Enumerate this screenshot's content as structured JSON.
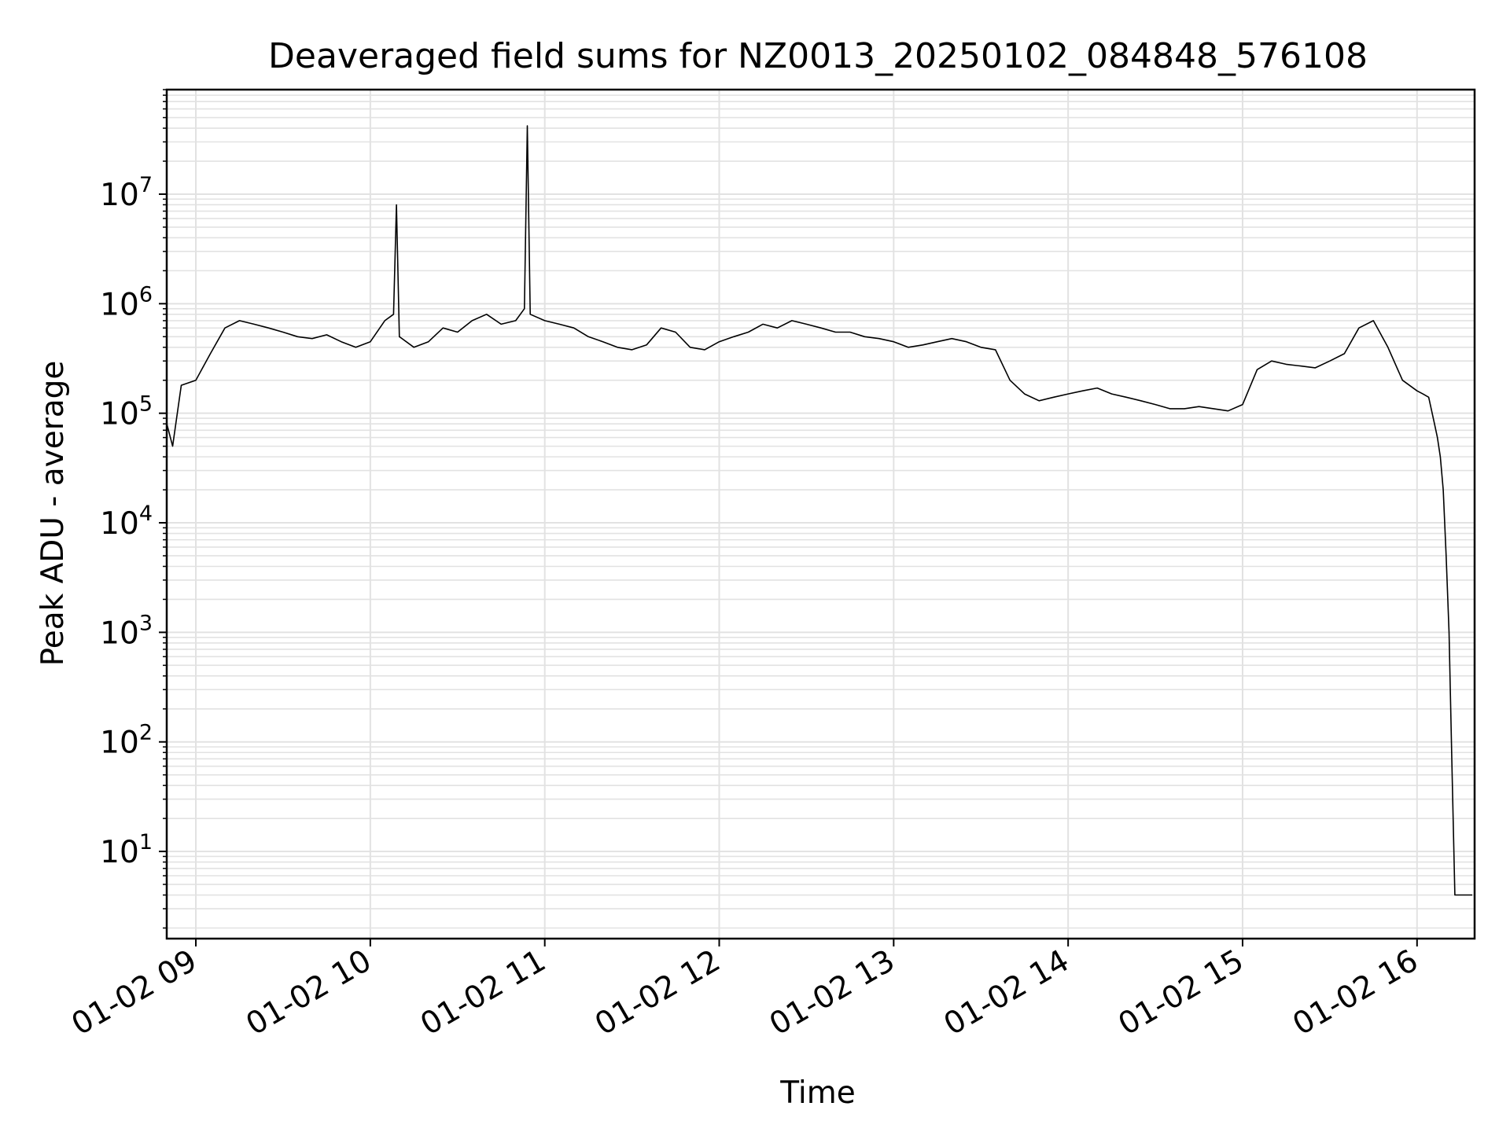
{
  "chart_data": {
    "type": "line",
    "title": "Deaveraged field sums for NZ0013_20250102_084848_576108",
    "xlabel": "Time",
    "ylabel": "Peak ADU - average",
    "yscale": "log",
    "ylim": [
      1.6,
      90000000
    ],
    "xlim": [
      "01-02 08:49:59",
      "01-02 16:19:48"
    ],
    "grid": true,
    "line_color": "#000000",
    "grid_color": "#e2e2e2",
    "x_ticks": [
      {
        "time": "01-02 09:00",
        "label": "01-02 09"
      },
      {
        "time": "01-02 10:00",
        "label": "01-02 10"
      },
      {
        "time": "01-02 11:00",
        "label": "01-02 11"
      },
      {
        "time": "01-02 12:00",
        "label": "01-02 12"
      },
      {
        "time": "01-02 13:00",
        "label": "01-02 13"
      },
      {
        "time": "01-02 14:00",
        "label": "01-02 14"
      },
      {
        "time": "01-02 15:00",
        "label": "01-02 15"
      },
      {
        "time": "01-02 16:00",
        "label": "01-02 16"
      }
    ],
    "y_ticks": [
      {
        "value": 10,
        "base": "10",
        "exp": "1"
      },
      {
        "value": 100,
        "base": "10",
        "exp": "2"
      },
      {
        "value": 1000,
        "base": "10",
        "exp": "3"
      },
      {
        "value": 10000,
        "base": "10",
        "exp": "4"
      },
      {
        "value": 100000,
        "base": "10",
        "exp": "5"
      },
      {
        "value": 1000000,
        "base": "10",
        "exp": "6"
      },
      {
        "value": 10000000,
        "base": "10",
        "exp": "7"
      }
    ],
    "series": [
      {
        "name": "",
        "x": [
          "08:50",
          "08:52",
          "08:55",
          "09:00",
          "09:05",
          "09:10",
          "09:15",
          "09:20",
          "09:25",
          "09:30",
          "09:35",
          "09:40",
          "09:45",
          "09:50",
          "09:55",
          "10:00",
          "10:05",
          "10:08",
          "10:09",
          "10:10",
          "10:15",
          "10:20",
          "10:25",
          "10:30",
          "10:35",
          "10:40",
          "10:45",
          "10:50",
          "10:53",
          "10:54",
          "10:55",
          "11:00",
          "11:05",
          "11:10",
          "11:15",
          "11:20",
          "11:25",
          "11:30",
          "11:35",
          "11:40",
          "11:45",
          "11:50",
          "11:55",
          "12:00",
          "12:05",
          "12:10",
          "12:15",
          "12:20",
          "12:25",
          "12:30",
          "12:35",
          "12:40",
          "12:45",
          "12:50",
          "12:55",
          "13:00",
          "13:05",
          "13:10",
          "13:15",
          "13:20",
          "13:25",
          "13:30",
          "13:35",
          "13:40",
          "13:45",
          "13:50",
          "13:55",
          "14:00",
          "14:05",
          "14:10",
          "14:15",
          "14:20",
          "14:25",
          "14:30",
          "14:35",
          "14:40",
          "14:45",
          "14:50",
          "14:55",
          "15:00",
          "15:05",
          "15:10",
          "15:15",
          "15:20",
          "15:25",
          "15:30",
          "15:35",
          "15:40",
          "15:45",
          "15:50",
          "15:55",
          "16:00",
          "16:02",
          "16:04",
          "16:06",
          "16:07",
          "16:08",
          "16:09",
          "16:10",
          "16:11",
          "16:12",
          "16:13",
          "16:15",
          "16:17",
          "16:19"
        ],
        "y": [
          80000,
          50000,
          180000,
          200000,
          350000,
          600000,
          700000,
          650000,
          600000,
          550000,
          500000,
          480000,
          520000,
          450000,
          400000,
          450000,
          700000,
          800000,
          8000000,
          500000,
          400000,
          450000,
          600000,
          550000,
          700000,
          800000,
          650000,
          700000,
          900000,
          42000000,
          800000,
          700000,
          650000,
          600000,
          500000,
          450000,
          400000,
          380000,
          420000,
          600000,
          550000,
          400000,
          380000,
          450000,
          500000,
          550000,
          650000,
          600000,
          700000,
          650000,
          600000,
          550000,
          550000,
          500000,
          480000,
          450000,
          400000,
          420000,
          450000,
          480000,
          450000,
          400000,
          380000,
          200000,
          150000,
          130000,
          140000,
          150000,
          160000,
          170000,
          150000,
          140000,
          130000,
          120000,
          110000,
          110000,
          115000,
          110000,
          105000,
          120000,
          250000,
          300000,
          280000,
          270000,
          260000,
          300000,
          350000,
          600000,
          700000,
          400000,
          200000,
          160000,
          150000,
          140000,
          80000,
          60000,
          40000,
          20000,
          5000,
          1000,
          60,
          4,
          4,
          4,
          4
        ]
      }
    ]
  }
}
